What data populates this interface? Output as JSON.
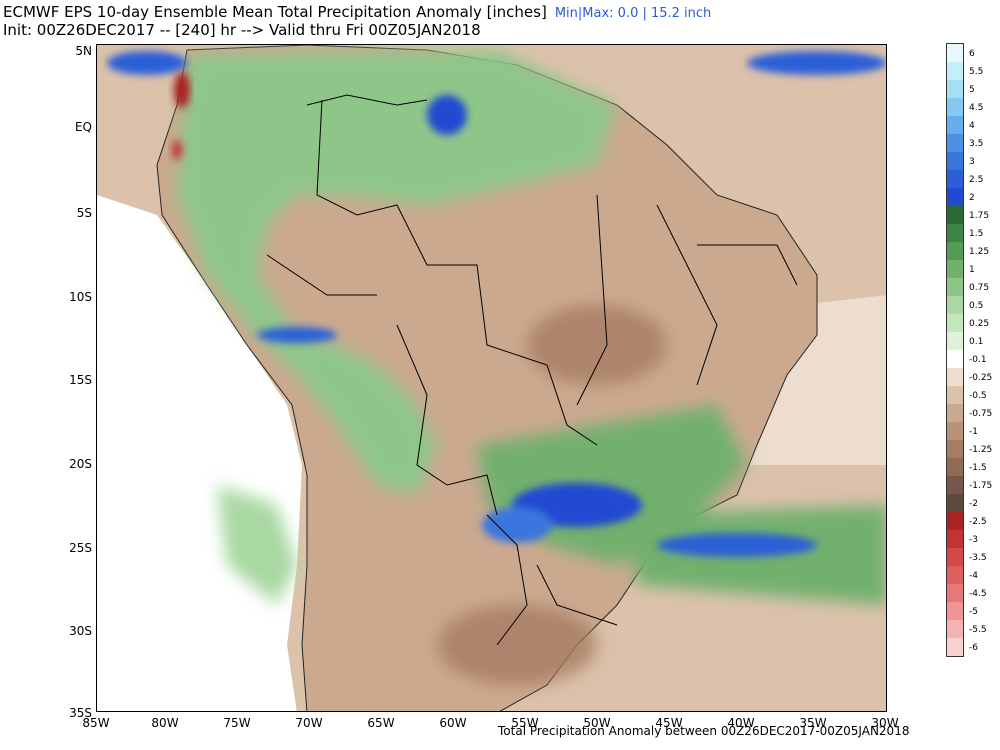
{
  "header": {
    "title": "ECMWF EPS 10-day Ensemble Mean Total Precipitation Anomaly [inches]",
    "minmax": "Min|Max: 0.0 | 15.2 inch",
    "init": "Init: 00Z26DEC2017 -- [240] hr --> Valid thru Fri 00Z05JAN2018"
  },
  "axes": {
    "lat_labels": [
      "5N",
      "EQ",
      "5S",
      "10S",
      "15S",
      "20S",
      "25S",
      "30S",
      "35S"
    ],
    "lon_labels": [
      "85W",
      "80W",
      "75W",
      "70W",
      "65W",
      "60W",
      "55W",
      "50W",
      "45W",
      "40W",
      "35W",
      "30W"
    ]
  },
  "footer": "Total Precipitation Anomaly between 00Z26DEC2017-00Z05JAN2018",
  "legend": {
    "labels": [
      "6",
      "5.5",
      "5",
      "4.5",
      "4",
      "3.5",
      "3",
      "2.5",
      "2",
      "1.75",
      "1.5",
      "1.25",
      "1",
      "0.75",
      "0.5",
      "0.25",
      "0.1",
      "-0.1",
      "-0.25",
      "-0.5",
      "-0.75",
      "-1",
      "-1.25",
      "-1.5",
      "-1.75",
      "-2",
      "-2.5",
      "-3",
      "-3.5",
      "-4",
      "-4.5",
      "-5",
      "-5.5",
      "-6"
    ],
    "colors": [
      "#e6f8fc",
      "#c4eef8",
      "#a6def5",
      "#84c8f3",
      "#64aeee",
      "#4c90e6",
      "#3a76de",
      "#2c5ed7",
      "#2149d2",
      "#2b6b33",
      "#3f8445",
      "#559b57",
      "#72b06e",
      "#8ec68a",
      "#a9d8a3",
      "#c3e6bd",
      "#def1d9",
      "#ffffff",
      "#ecddcf",
      "#dcc2ab",
      "#cba98f",
      "#ba9276",
      "#a67c63",
      "#8f6a55",
      "#755849",
      "#5f4a3f",
      "#a82424",
      "#c23434",
      "#d34848",
      "#df5e5e",
      "#e87878",
      "#ee9494",
      "#f4b2b2",
      "#f9d0d0"
    ]
  },
  "map_colors": {
    "ocean_dry": "#dcc2ab",
    "land_dry": "#cba98f",
    "wet": "#8ec68a",
    "very_wet": "#2149d2",
    "extreme_dry": "#a82424",
    "borders": "#000000"
  }
}
